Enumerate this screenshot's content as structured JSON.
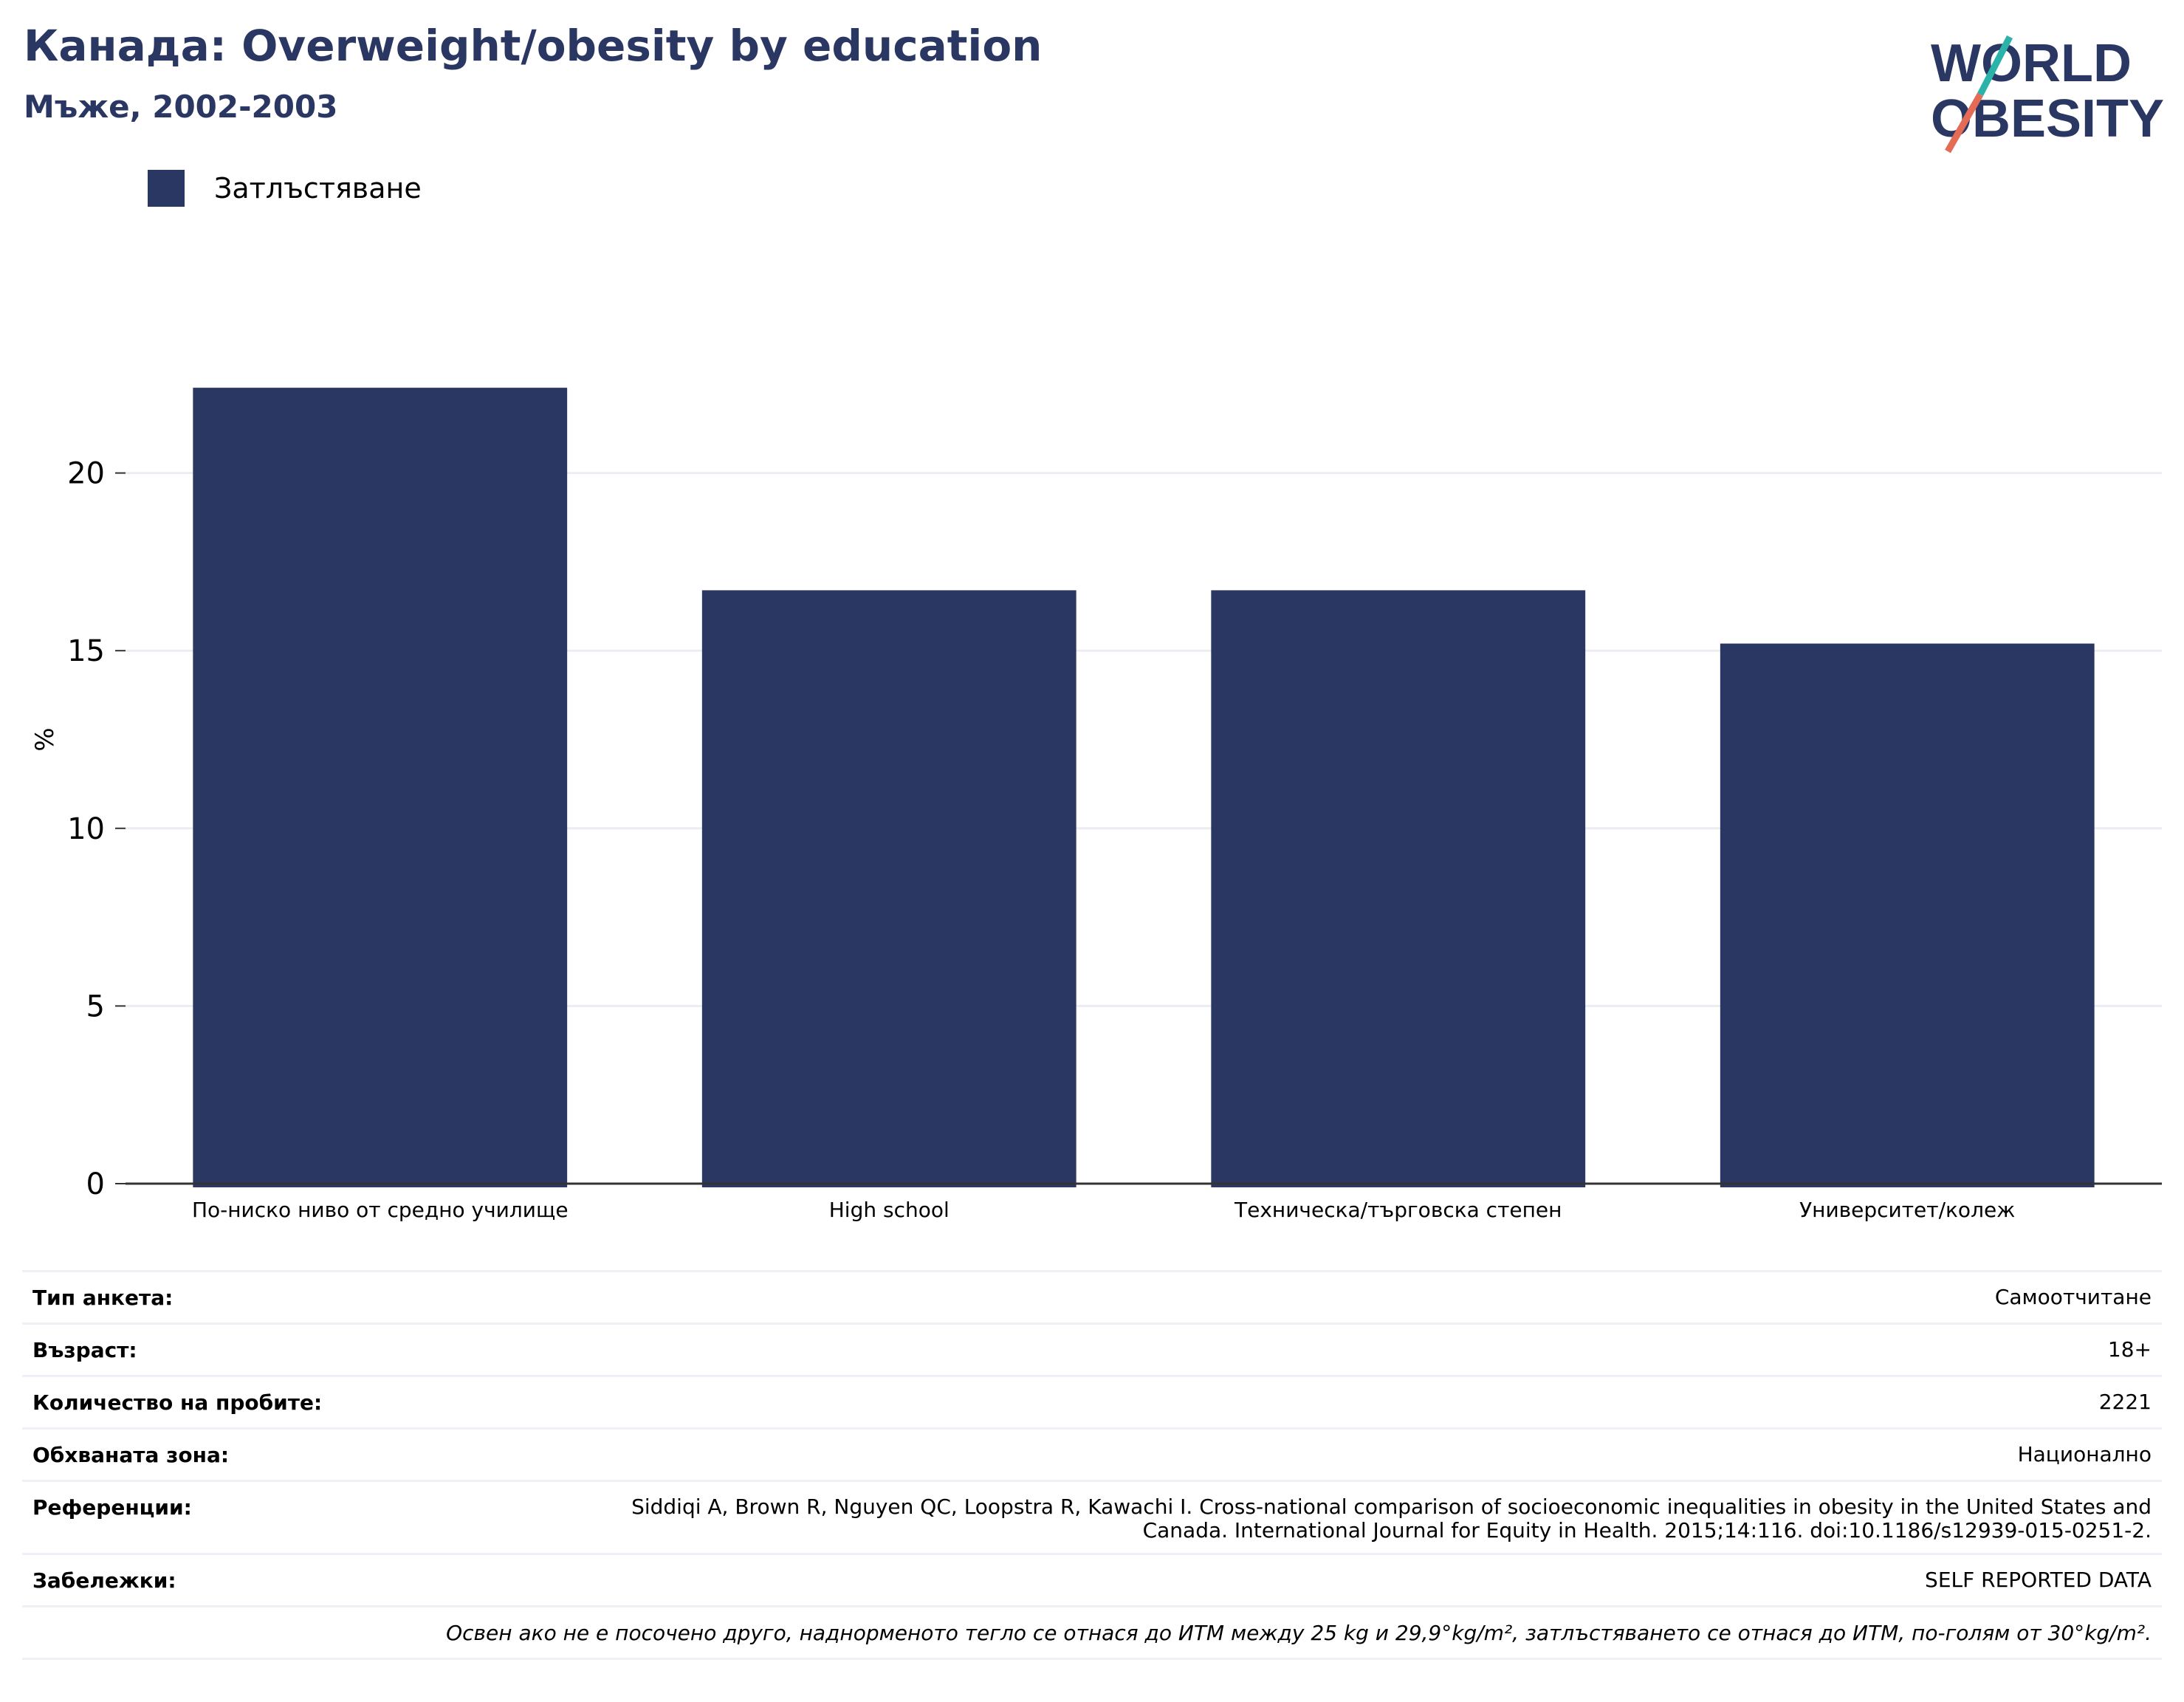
{
  "header": {
    "title": "Канада: Overweight/obesity by education",
    "subtitle": "Мъже, 2002-2003"
  },
  "logo": {
    "line1": "WORLD",
    "line2": "OBESITY"
  },
  "colors": {
    "bar": "#2a3763",
    "title": "#2a3763",
    "grid": "#ebedf2",
    "logo_teal": "#2bb3a9",
    "logo_coral": "#e46b55"
  },
  "chart_data": {
    "type": "bar",
    "categories": [
      "По-ниско ниво от средно училище",
      "High school",
      "Техническа/търговска степен",
      "Университет/колеж"
    ],
    "series": [
      {
        "name": "Затлъстяване",
        "values": [
          22.4,
          16.7,
          16.7,
          15.2
        ]
      }
    ],
    "ylabel": "%",
    "ylim": [
      0,
      25
    ],
    "yticks": [
      0,
      5,
      10,
      15,
      20
    ],
    "legend": "top-left",
    "grid": true
  },
  "info": {
    "rows": [
      {
        "key": "Тип анкета:",
        "value": "Самоотчитане"
      },
      {
        "key": "Възраст:",
        "value": "18+"
      },
      {
        "key": "Количество на пробите:",
        "value": "2221"
      },
      {
        "key": "Обхваната зона:",
        "value": "Национално"
      },
      {
        "key": "Референции:",
        "value": "Siddiqi A, Brown R, Nguyen QC, Loopstra R, Kawachi I. Cross-national comparison of socioeconomic inequalities in obesity in the United States and Canada. International Journal for Equity in Health. 2015;14:116. doi:10.1186/s12939-015-0251-2."
      },
      {
        "key": "Забележки:",
        "value": "SELF REPORTED DATA"
      }
    ],
    "note": "Освен ако не е посочено друго, наднорменото тегло се отнася до ИТМ между 25 kg и 29,9°kg/m², затлъстяването се отнася до ИТМ, по-голям от 30°kg/m²."
  }
}
